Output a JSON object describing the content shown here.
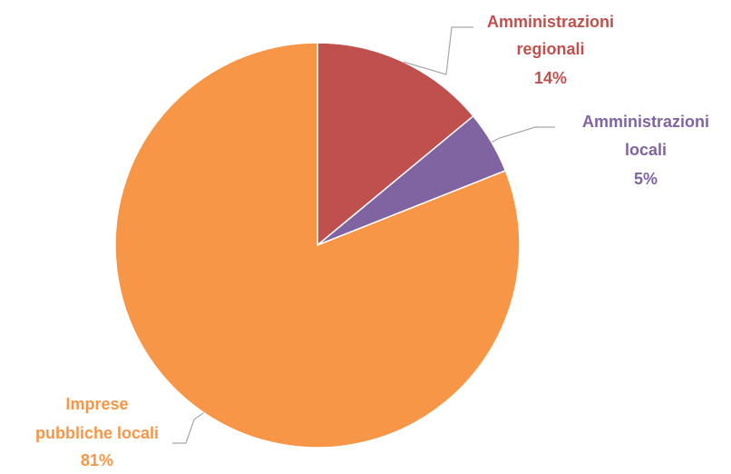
{
  "chart_data": {
    "type": "pie",
    "title": "",
    "slices": [
      {
        "name": "Amministrazioni regionali",
        "label_lines": [
          "Amministrazioni",
          "regionali"
        ],
        "value": 14,
        "value_label": "14%",
        "color": "#c0504d"
      },
      {
        "name": "Amministrazioni locali",
        "label_lines": [
          "Amministrazioni",
          "locali"
        ],
        "value": 5,
        "value_label": "5%",
        "color": "#8064a2"
      },
      {
        "name": "Imprese pubbliche locali",
        "label_lines": [
          "Imprese",
          "pubbliche locali"
        ],
        "value": 81,
        "value_label": "81%",
        "color": "#f79646"
      }
    ],
    "start_angle": "12 o'clock",
    "direction": "clockwise",
    "legend": "none"
  }
}
